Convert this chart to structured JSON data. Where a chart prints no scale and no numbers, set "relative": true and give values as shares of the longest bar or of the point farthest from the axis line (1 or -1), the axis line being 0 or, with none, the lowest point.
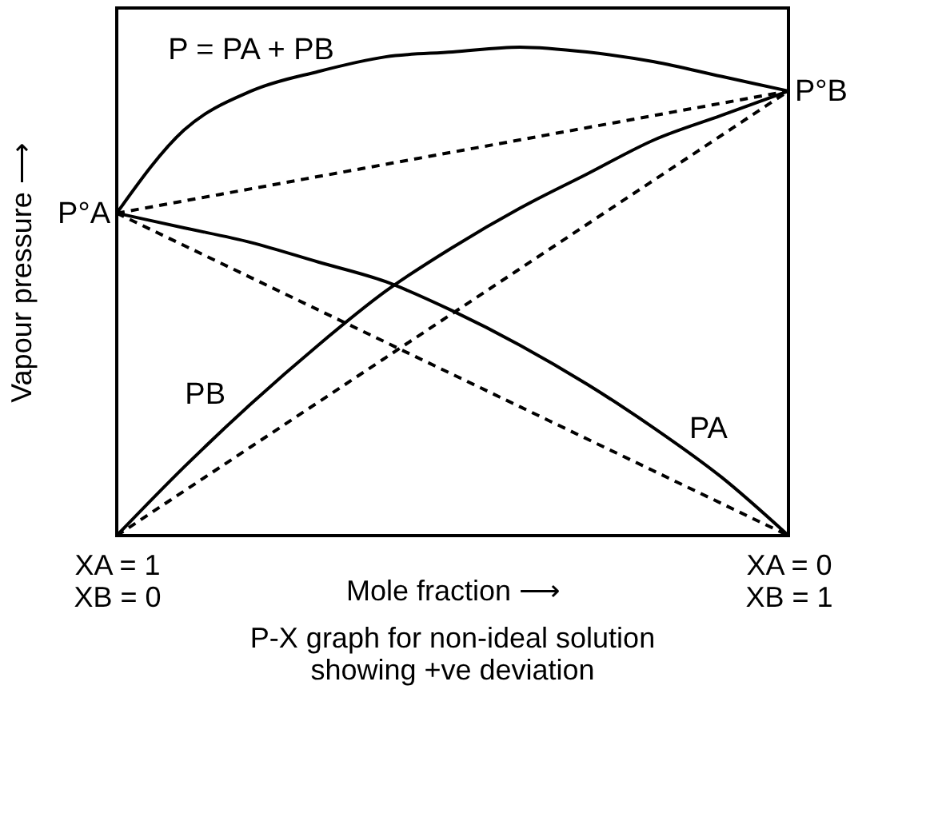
{
  "chart_data": {
    "type": "line",
    "relative": true,
    "title": "P-X graph for non-ideal solution showing +ve deviation",
    "xlabel": "Mole fraction ⟶",
    "ylabel": "Vapour pressure ⟶",
    "categories": [
      "XA = 1\nXB = 0",
      null,
      null,
      null,
      null,
      null,
      null,
      null,
      null,
      null,
      "XA = 0\nXB = 1"
    ],
    "series": [
      {
        "name": "P = PA + PB",
        "color": "#000000",
        "values": [
          0.66,
          0.83,
          0.91,
          0.95,
          0.98,
          0.99,
          1.0,
          0.99,
          0.97,
          0.94,
          0.91
        ]
      },
      {
        "name": "PA",
        "color": "#000000",
        "values": [
          0.66,
          0.63,
          0.6,
          0.56,
          0.52,
          0.46,
          0.39,
          0.31,
          0.22,
          0.12,
          0
        ]
      },
      {
        "name": "PB",
        "color": "#000000",
        "values": [
          0,
          0.14,
          0.27,
          0.39,
          0.5,
          0.59,
          0.67,
          0.74,
          0.81,
          0.86,
          0.91
        ]
      },
      {
        "color": "#000000",
        "line_style": "dashed",
        "values": [
          0.66,
          0.685,
          0.71,
          0.735,
          0.76,
          0.785,
          0.81,
          0.835,
          0.86,
          0.885,
          0.91
        ]
      },
      {
        "color": "#000000",
        "line_style": "dashed",
        "values": [
          0.66,
          0.594,
          0.528,
          0.462,
          0.396,
          0.33,
          0.264,
          0.198,
          0.132,
          0.066,
          0
        ]
      },
      {
        "color": "#000000",
        "line_style": "dashed",
        "values": [
          0,
          0.091,
          0.182,
          0.273,
          0.364,
          0.455,
          0.546,
          0.637,
          0.728,
          0.819,
          0.91
        ]
      }
    ],
    "annotations": [
      "P°A",
      "P°B"
    ],
    "line_style": "solid"
  }
}
